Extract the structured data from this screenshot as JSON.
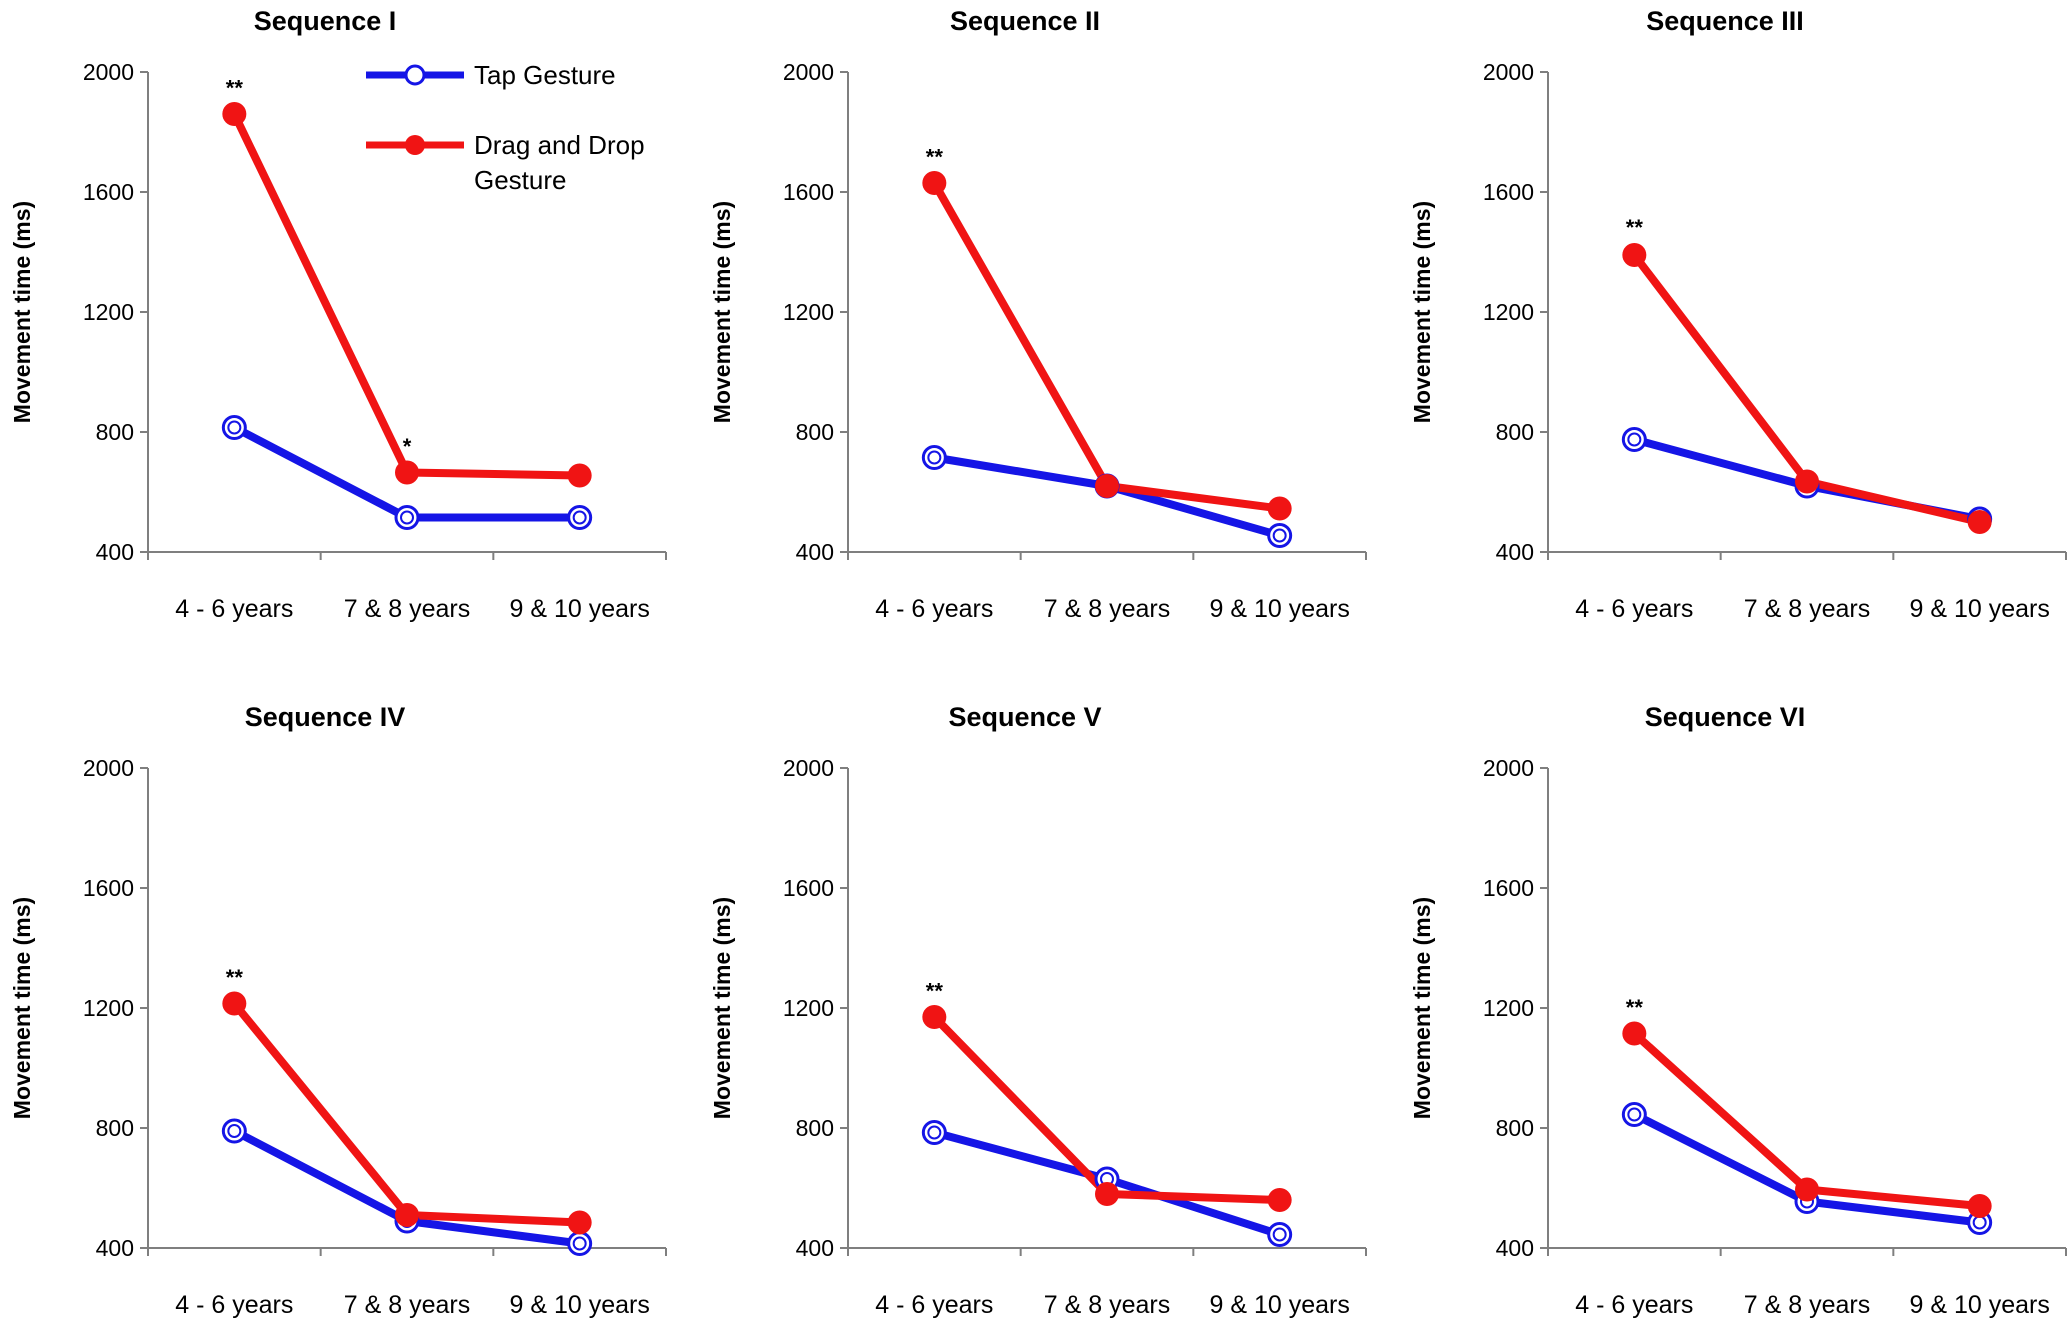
{
  "colors": {
    "tap": "#1515e6",
    "drag": "#f01414",
    "axis": "#7f7f7f"
  },
  "legend": {
    "tap": "Tap Gesture",
    "drag_line1": "Drag and Drop",
    "drag_line2": "Gesture"
  },
  "chart_data": [
    {
      "type": "line",
      "title": "Sequence I",
      "ylabel": "Movement time (ms)",
      "categories": [
        "4 - 6 years",
        "7 & 8 years",
        "9 & 10 years"
      ],
      "ylim": [
        400,
        2000
      ],
      "yticks": [
        400,
        800,
        1200,
        1600,
        2000
      ],
      "series": [
        {
          "name": "Tap Gesture",
          "values": [
            815,
            515,
            515
          ]
        },
        {
          "name": "Drag and Drop Gesture",
          "values": [
            1860,
            665,
            655
          ]
        }
      ],
      "annotations": [
        {
          "category": "4 - 6 years",
          "text": "**",
          "y": 1975
        },
        {
          "category": "7 & 8 years",
          "text": "*",
          "y": 780
        }
      ]
    },
    {
      "type": "line",
      "title": "Sequence II",
      "ylabel": "Movement time (ms)",
      "categories": [
        "4 - 6 years",
        "7 & 8 years",
        "9 & 10 years"
      ],
      "ylim": [
        400,
        2000
      ],
      "yticks": [
        400,
        800,
        1200,
        1600,
        2000
      ],
      "series": [
        {
          "name": "Tap Gesture",
          "values": [
            715,
            620,
            455
          ]
        },
        {
          "name": "Drag and Drop Gesture",
          "values": [
            1630,
            620,
            545
          ]
        }
      ],
      "annotations": [
        {
          "category": "4 - 6 years",
          "text": "**",
          "y": 1745
        }
      ]
    },
    {
      "type": "line",
      "title": "Sequence III",
      "ylabel": "Movement time (ms)",
      "categories": [
        "4 - 6 years",
        "7 & 8 years",
        "9 & 10 years"
      ],
      "ylim": [
        400,
        2000
      ],
      "yticks": [
        400,
        800,
        1200,
        1600,
        2000
      ],
      "series": [
        {
          "name": "Tap Gesture",
          "values": [
            775,
            620,
            510
          ]
        },
        {
          "name": "Drag and Drop Gesture",
          "values": [
            1390,
            635,
            500
          ]
        }
      ],
      "annotations": [
        {
          "category": "4 - 6 years",
          "text": "**",
          "y": 1510
        }
      ]
    },
    {
      "type": "line",
      "title": "Sequence IV",
      "ylabel": "Movement time (ms)",
      "categories": [
        "4 - 6 years",
        "7 & 8 years",
        "9 & 10 years"
      ],
      "ylim": [
        400,
        2000
      ],
      "yticks": [
        400,
        800,
        1200,
        1600,
        2000
      ],
      "series": [
        {
          "name": "Tap Gesture",
          "values": [
            790,
            490,
            415
          ]
        },
        {
          "name": "Drag and Drop Gesture",
          "values": [
            1215,
            510,
            485
          ]
        }
      ],
      "annotations": [
        {
          "category": "4 - 6 years",
          "text": "**",
          "y": 1330
        }
      ]
    },
    {
      "type": "line",
      "title": "Sequence V",
      "ylabel": "Movement time (ms)",
      "categories": [
        "4 - 6 years",
        "7 & 8 years",
        "9 & 10 years"
      ],
      "ylim": [
        400,
        2000
      ],
      "yticks": [
        400,
        800,
        1200,
        1600,
        2000
      ],
      "series": [
        {
          "name": "Tap Gesture",
          "values": [
            785,
            630,
            445
          ]
        },
        {
          "name": "Drag and Drop Gesture",
          "values": [
            1170,
            580,
            560
          ]
        }
      ],
      "annotations": [
        {
          "category": "4 - 6 years",
          "text": "**",
          "y": 1285
        }
      ]
    },
    {
      "type": "line",
      "title": "Sequence VI",
      "ylabel": "Movement time (ms)",
      "categories": [
        "4 - 6 years",
        "7 & 8 years",
        "9 & 10 years"
      ],
      "ylim": [
        400,
        2000
      ],
      "yticks": [
        400,
        800,
        1200,
        1600,
        2000
      ],
      "series": [
        {
          "name": "Tap Gesture",
          "values": [
            845,
            555,
            485
          ]
        },
        {
          "name": "Drag and Drop Gesture",
          "values": [
            1115,
            595,
            540
          ]
        }
      ],
      "annotations": [
        {
          "category": "4 - 6 years",
          "text": "**",
          "y": 1230
        }
      ]
    }
  ]
}
